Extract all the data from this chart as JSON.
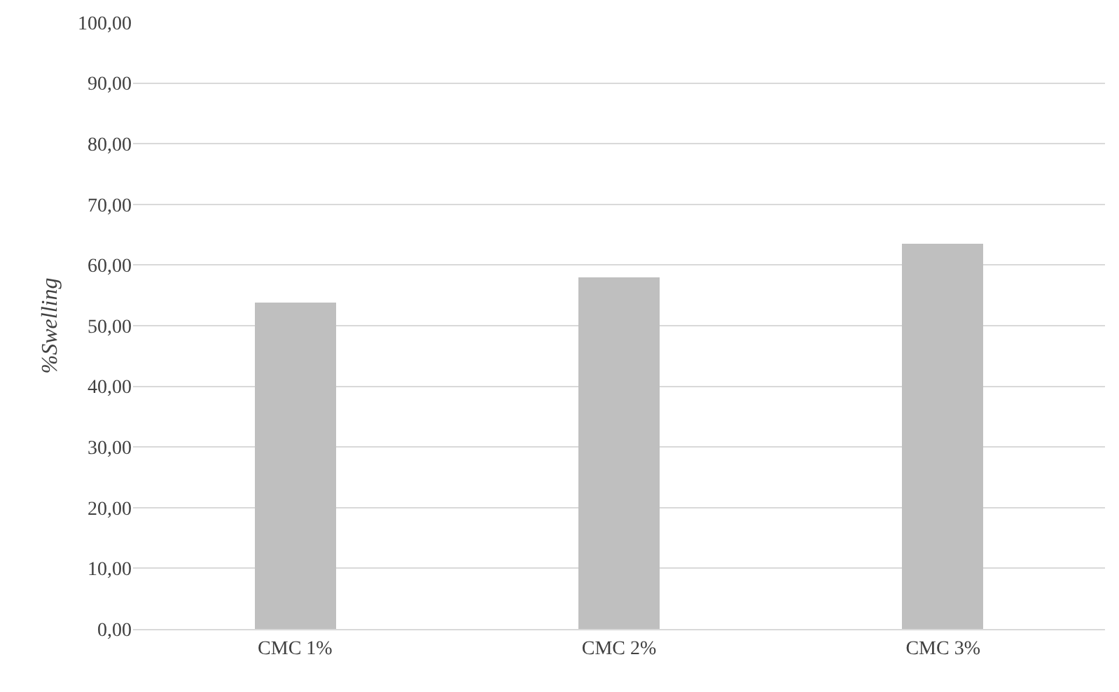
{
  "chart_data": {
    "type": "bar",
    "ylabel": "%Swelling",
    "categories": [
      "CMC 1%",
      "CMC 2%",
      "CMC 3%"
    ],
    "values": [
      53.8,
      58.0,
      63.6
    ],
    "color": "#bfbfbf",
    "ylim": [
      0,
      100
    ],
    "yticks": [
      {
        "value": 0,
        "label": "0,00"
      },
      {
        "value": 10,
        "label": "10,00"
      },
      {
        "value": 20,
        "label": "20,00"
      },
      {
        "value": 30,
        "label": "30,00"
      },
      {
        "value": 40,
        "label": "40,00"
      },
      {
        "value": 50,
        "label": "50,00"
      },
      {
        "value": 60,
        "label": "60,00"
      },
      {
        "value": 70,
        "label": "70,00"
      },
      {
        "value": 80,
        "label": "80,00"
      },
      {
        "value": 90,
        "label": "90,00"
      },
      {
        "value": 100,
        "label": "100,00"
      }
    ],
    "grid": "y"
  }
}
